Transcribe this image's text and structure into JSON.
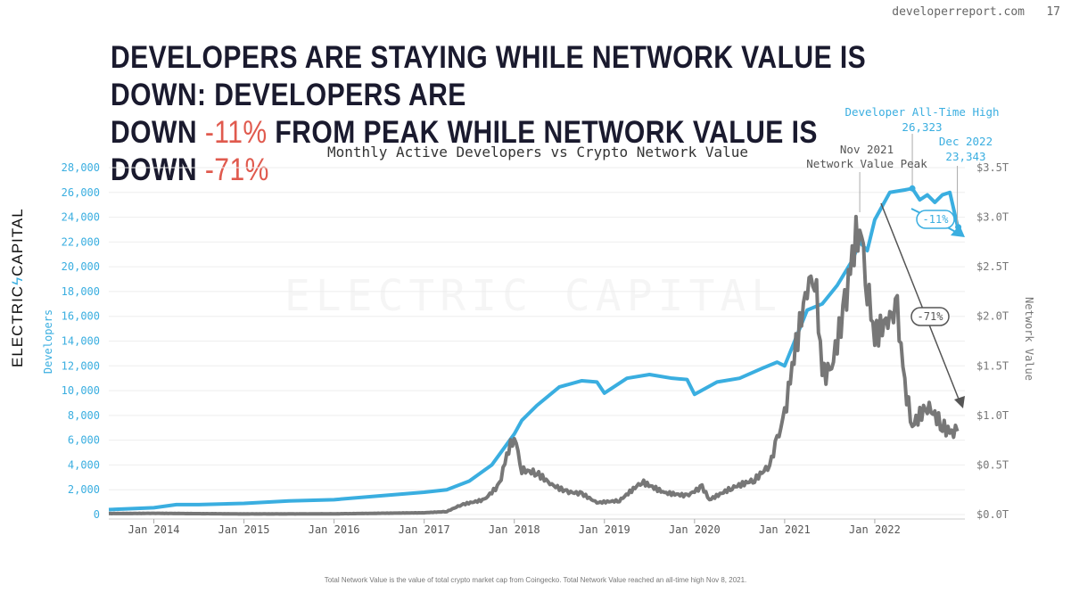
{
  "header": {
    "site": "developerreport.com",
    "page_number": "17"
  },
  "headline": {
    "line1": "DEVELOPERS ARE STAYING WHILE NETWORK VALUE IS DOWN: DEVELOPERS ARE",
    "line2_a": "DOWN ",
    "line2_b": "-11%",
    "line2_c": " FROM PEAK WHILE NETWORK VALUE IS DOWN ",
    "line2_d": "-71%"
  },
  "logo": {
    "left": "ELECTRIC",
    "right": "CAPITAL"
  },
  "footnote": "Total Network Value is the value of total crypto market cap from Coingecko. Total Network Value reached an all-time high Nov 8, 2021.",
  "colors": {
    "developers": "#3aaee0",
    "network_value": "#777777",
    "accent_red": "#e05a4e"
  },
  "chart_data": {
    "type": "line",
    "title": "Monthly Active Developers vs Crypto Network Value",
    "ylabel": "Developers",
    "y2label": "Network Value",
    "ylim": [
      0,
      28000
    ],
    "y2lim": [
      0,
      3.5
    ],
    "yticks": [
      "0",
      "2,000",
      "4,000",
      "6,000",
      "8,000",
      "10,000",
      "12,000",
      "14,000",
      "16,000",
      "18,000",
      "20,000",
      "22,000",
      "24,000",
      "26,000",
      "28,000"
    ],
    "y2ticks": [
      "$0.0T",
      "$0.5T",
      "$1.0T",
      "$1.5T",
      "$2.0T",
      "$2.5T",
      "$3.0T",
      "$3.5T"
    ],
    "xticks": [
      "Jan 2014",
      "Jan 2015",
      "Jan 2016",
      "Jan 2017",
      "Jan 2018",
      "Jan 2019",
      "Jan 2020",
      "Jan 2021",
      "Jan 2022"
    ],
    "xlim": [
      "2013-07",
      "2023-01"
    ],
    "grid": "horizontal",
    "watermark": "ELECTRIC CAPITAL",
    "series": [
      {
        "key": "developers",
        "axis": "left",
        "points": [
          [
            "2013-07",
            400
          ],
          [
            "2014-01",
            550
          ],
          [
            "2014-04",
            800
          ],
          [
            "2014-07",
            800
          ],
          [
            "2015-01",
            900
          ],
          [
            "2015-07",
            1100
          ],
          [
            "2016-01",
            1200
          ],
          [
            "2016-07",
            1500
          ],
          [
            "2017-01",
            1800
          ],
          [
            "2017-04",
            2000
          ],
          [
            "2017-07",
            2700
          ],
          [
            "2017-10",
            4000
          ],
          [
            "2018-01",
            6500
          ],
          [
            "2018-02",
            7600
          ],
          [
            "2018-04",
            8800
          ],
          [
            "2018-07",
            10300
          ],
          [
            "2018-10",
            10800
          ],
          [
            "2018-12",
            10700
          ],
          [
            "2019-01",
            9800
          ],
          [
            "2019-04",
            11000
          ],
          [
            "2019-07",
            11300
          ],
          [
            "2019-10",
            11000
          ],
          [
            "2019-12",
            10900
          ],
          [
            "2020-01",
            9700
          ],
          [
            "2020-04",
            10700
          ],
          [
            "2020-07",
            11000
          ],
          [
            "2020-10",
            11800
          ],
          [
            "2020-12",
            12300
          ],
          [
            "2021-01",
            12000
          ],
          [
            "2021-02",
            13500
          ],
          [
            "2021-04",
            16500
          ],
          [
            "2021-06",
            17000
          ],
          [
            "2021-08",
            18500
          ],
          [
            "2021-10",
            20500
          ],
          [
            "2021-11",
            22000
          ],
          [
            "2021-12",
            21300
          ],
          [
            "2022-01",
            23800
          ],
          [
            "2022-03",
            26000
          ],
          [
            "2022-05",
            26200
          ],
          [
            "2022-06",
            26323
          ],
          [
            "2022-07",
            25400
          ],
          [
            "2022-08",
            25800
          ],
          [
            "2022-09",
            25200
          ],
          [
            "2022-10",
            25800
          ],
          [
            "2022-11",
            26000
          ],
          [
            "2022-12",
            23343
          ]
        ]
      },
      {
        "key": "network_value",
        "axis": "right",
        "points": [
          [
            "2013-07",
            0.01
          ],
          [
            "2014-01",
            0.012
          ],
          [
            "2015-01",
            0.006
          ],
          [
            "2016-01",
            0.007
          ],
          [
            "2017-01",
            0.018
          ],
          [
            "2017-04",
            0.03
          ],
          [
            "2017-06",
            0.1
          ],
          [
            "2017-09",
            0.15
          ],
          [
            "2017-11",
            0.3
          ],
          [
            "2017-12",
            0.6
          ],
          [
            "2018-01",
            0.8
          ],
          [
            "2018-02",
            0.45
          ],
          [
            "2018-04",
            0.42
          ],
          [
            "2018-06",
            0.3
          ],
          [
            "2018-08",
            0.23
          ],
          [
            "2018-10",
            0.21
          ],
          [
            "2018-12",
            0.12
          ],
          [
            "2019-03",
            0.14
          ],
          [
            "2019-06",
            0.33
          ],
          [
            "2019-09",
            0.22
          ],
          [
            "2019-12",
            0.19
          ],
          [
            "2020-02",
            0.28
          ],
          [
            "2020-03",
            0.15
          ],
          [
            "2020-06",
            0.27
          ],
          [
            "2020-09",
            0.35
          ],
          [
            "2020-11",
            0.5
          ],
          [
            "2020-12",
            0.75
          ],
          [
            "2021-01",
            1.0
          ],
          [
            "2021-02",
            1.5
          ],
          [
            "2021-04",
            2.3
          ],
          [
            "2021-05",
            2.45
          ],
          [
            "2021-06",
            1.45
          ],
          [
            "2021-07",
            1.4
          ],
          [
            "2021-09",
            2.1
          ],
          [
            "2021-10",
            2.6
          ],
          [
            "2021-11",
            2.97
          ],
          [
            "2021-12",
            2.3
          ],
          [
            "2022-01",
            1.8
          ],
          [
            "2022-03",
            2.0
          ],
          [
            "2022-04",
            2.05
          ],
          [
            "2022-05",
            1.3
          ],
          [
            "2022-06",
            0.9
          ],
          [
            "2022-08",
            1.1
          ],
          [
            "2022-10",
            0.9
          ],
          [
            "2022-11",
            0.82
          ],
          [
            "2022-12",
            0.84
          ]
        ]
      }
    ],
    "annotations": {
      "dev_ath_label": "Developer All-Time High",
      "dev_ath_value": "26,323",
      "dev_ath_date": "2022-06",
      "dec_label": "Dec 2022",
      "dec_value": "23,343",
      "nv_peak_date": "Nov 2021",
      "nv_peak_label": "Network Value Peak",
      "dev_change": "-11%",
      "nv_change": "-71%"
    }
  }
}
